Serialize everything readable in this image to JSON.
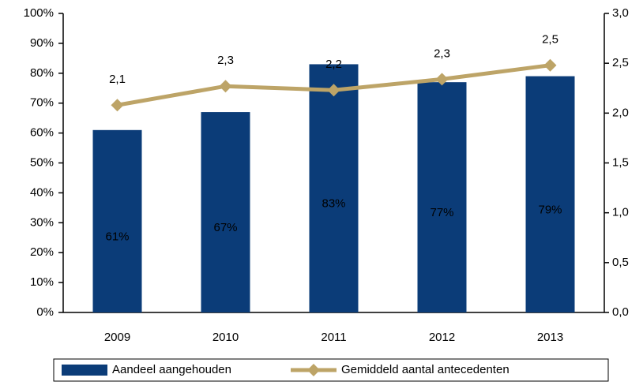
{
  "chart_data": {
    "type": "bar-line",
    "categories": [
      "2009",
      "2010",
      "2011",
      "2012",
      "2013"
    ],
    "series": [
      {
        "name": "Aandeel aangehouden",
        "color": "#0b3c78",
        "type": "bar",
        "values": [
          61,
          67,
          83,
          77,
          79
        ],
        "value_labels": [
          "61%",
          "67%",
          "83%",
          "77%",
          "79%"
        ]
      },
      {
        "name": "Gemiddeld aantal antecedenten",
        "color": "#bda467",
        "type": "line",
        "axis": "y2",
        "values": [
          2.08,
          2.27,
          2.23,
          2.34,
          2.48
        ],
        "value_labels": [
          "2,1",
          "2,3",
          "2,2",
          "2,3",
          "2,5"
        ]
      }
    ],
    "ylim": [
      0,
      100
    ],
    "yticks": [
      {
        "value": 0,
        "label": "0%"
      },
      {
        "value": 10,
        "label": "10%"
      },
      {
        "value": 20,
        "label": "20%"
      },
      {
        "value": 30,
        "label": "30%"
      },
      {
        "value": 40,
        "label": "40%"
      },
      {
        "value": 50,
        "label": "50%"
      },
      {
        "value": 60,
        "label": "60%"
      },
      {
        "value": 70,
        "label": "70%"
      },
      {
        "value": 80,
        "label": "80%"
      },
      {
        "value": 90,
        "label": "90%"
      },
      {
        "value": 100,
        "label": "100%"
      }
    ],
    "y2lim": [
      0,
      3
    ],
    "y2ticks": [
      {
        "value": 0,
        "label": "0,0"
      },
      {
        "value": 0.5,
        "label": "0,5"
      },
      {
        "value": 1,
        "label": "1,0"
      },
      {
        "value": 1.5,
        "label": "1,5"
      },
      {
        "value": 2,
        "label": "2,0"
      },
      {
        "value": 2.5,
        "label": "2,5"
      },
      {
        "value": 3,
        "label": "3,0"
      }
    ],
    "grid": false,
    "legend": "bottom"
  }
}
